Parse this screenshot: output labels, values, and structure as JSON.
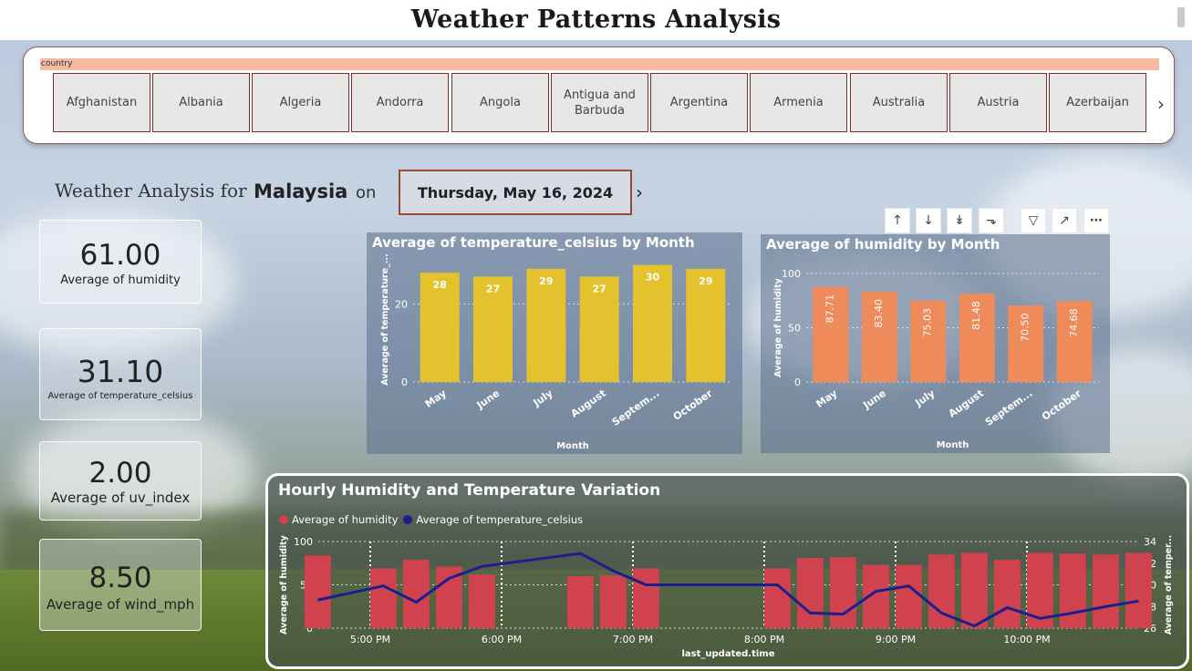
{
  "page_title": "Weather Patterns Analysis",
  "slicer": {
    "header": "country",
    "items": [
      "Afghanistan",
      "Albania",
      "Algeria",
      "Andorra",
      "Angola",
      "Antigua and Barbuda",
      "Argentina",
      "Armenia",
      "Australia",
      "Austria",
      "Azerbaijan"
    ]
  },
  "heading": {
    "prefix": "Weather Analysis for",
    "country": "Malaysia",
    "on": "on",
    "date": "Thursday, May 16, 2024"
  },
  "cards": [
    {
      "value": "61.00",
      "label": "Average of humidity"
    },
    {
      "value": "31.10",
      "label": "Average of temperature_celsius"
    },
    {
      "value": "2.00",
      "label": "Average of uv_index"
    },
    {
      "value": "8.50",
      "label": "Average of wind_mph"
    }
  ],
  "toolbar_icons": [
    "arrow-up-icon",
    "arrow-down-icon",
    "double-arrow-down-icon",
    "expand-hierarchy-icon",
    "filter-icon",
    "focus-mode-icon",
    "more-options-icon"
  ],
  "colors": {
    "temp_bar": "#e3c22e",
    "humidity_bar": "#ef8a5a",
    "hourly_bar": "#d0424e",
    "hourly_line": "#1a1f8c"
  },
  "chart_data": [
    {
      "type": "bar",
      "title": "Average of temperature_celsius by Month",
      "xlabel": "Month",
      "ylabel": "Average of temperature_...",
      "categories": [
        "May",
        "June",
        "July",
        "August",
        "Septem...",
        "October"
      ],
      "values": [
        28,
        27,
        29,
        27,
        30,
        29
      ],
      "data_labels": [
        "28",
        "27",
        "29",
        "27",
        "30",
        "29"
      ],
      "ylim": [
        0,
        32
      ],
      "yticks": [
        0,
        20
      ]
    },
    {
      "type": "bar",
      "title": "Average of humidity by Month",
      "xlabel": "Month",
      "ylabel": "Average of humidity",
      "categories": [
        "May",
        "June",
        "July",
        "August",
        "Septem...",
        "October"
      ],
      "values": [
        87.71,
        83.4,
        75.03,
        81.48,
        70.5,
        74.68
      ],
      "data_labels": [
        "87.71",
        "83.40",
        "75.03",
        "81.48",
        "70.50",
        "74.68"
      ],
      "ylim": [
        0,
        100
      ],
      "yticks": [
        0,
        50,
        100
      ]
    },
    {
      "type": "bar",
      "title": "Hourly Humidity and Temperature Variation",
      "xlabel": "last_updated.time",
      "ylabel": "Average of humidity",
      "y2label": "Average of temper...",
      "legend": [
        "Average of humidity",
        "Average of temperature_celsius"
      ],
      "x_ticks": [
        "5:00 PM",
        "6:00 PM",
        "7:00 PM",
        "8:00 PM",
        "9:00 PM",
        "10:00 PM"
      ],
      "x_hours": [
        16.6,
        17.1,
        17.35,
        17.6,
        17.85,
        18.6,
        18.85,
        19.1,
        20.1,
        20.35,
        20.6,
        20.85,
        21.1,
        21.35,
        21.6,
        21.85,
        22.1,
        22.35,
        22.6,
        22.85
      ],
      "series": [
        {
          "name": "Average of humidity",
          "values": [
            84,
            69,
            79,
            71,
            62,
            60,
            61,
            69,
            69,
            81,
            82,
            73,
            73,
            85,
            87,
            79,
            87,
            86,
            85,
            87
          ]
        },
        {
          "name": "Average of temperature_celsius",
          "values": [
            28.6,
            29.9,
            28.4,
            30.6,
            31.7,
            32.9,
            31.3,
            30.0,
            30.0,
            27.4,
            27.3,
            29.4,
            29.9,
            27.4,
            26.2,
            27.9,
            26.9,
            27.4,
            28.0,
            28.5
          ]
        }
      ],
      "ylim": [
        0,
        100
      ],
      "y2lim": [
        26,
        34
      ],
      "yticks": [
        0,
        50,
        100
      ],
      "y2ticks": [
        26,
        28,
        30,
        32,
        34
      ]
    }
  ]
}
